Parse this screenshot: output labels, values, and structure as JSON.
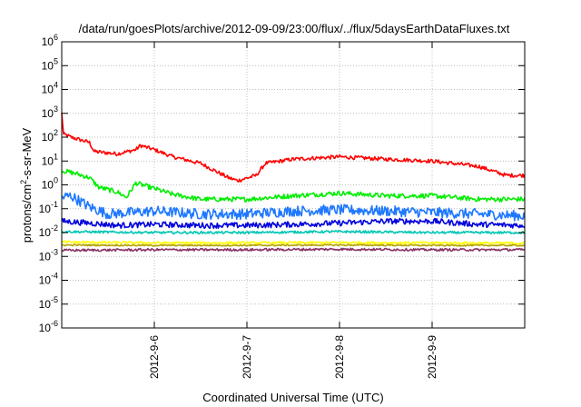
{
  "chart_data": {
    "type": "line",
    "title": "/data/run/goesPlots/archive/2012-09-09/23:00/flux/../flux/5daysEarthDataFluxes.txt",
    "xlabel": "Coordinated Universal Time (UTC)",
    "ylabel": "protons/cm2-s-sr-MeV",
    "y_scale": "log",
    "ylim": [
      1e-06,
      1000000.0
    ],
    "xlim_days": [
      0,
      5
    ],
    "x_ticks": [
      {
        "label": "2012-9-6",
        "day": 1
      },
      {
        "label": "2012-9-7",
        "day": 2
      },
      {
        "label": "2012-9-8",
        "day": 3
      },
      {
        "label": "2012-9-9",
        "day": 4
      }
    ],
    "y_ticks": [
      {
        "base": "10",
        "exp": "-6",
        "value": 1e-06
      },
      {
        "base": "10",
        "exp": "-5",
        "value": 1e-05
      },
      {
        "base": "10",
        "exp": "-4",
        "value": 0.0001
      },
      {
        "base": "10",
        "exp": "-3",
        "value": 0.001
      },
      {
        "base": "10",
        "exp": "-2",
        "value": 0.01
      },
      {
        "base": "10",
        "exp": "-1",
        "value": 0.1
      },
      {
        "base": "10",
        "exp": "0",
        "value": 1
      },
      {
        "base": "10",
        "exp": "1",
        "value": 10
      },
      {
        "base": "10",
        "exp": "2",
        "value": 100
      },
      {
        "base": "10",
        "exp": "3",
        "value": 1000
      },
      {
        "base": "10",
        "exp": "4",
        "value": 10000
      },
      {
        "base": "10",
        "exp": "5",
        "value": 100000
      },
      {
        "base": "10",
        "exp": "6",
        "value": 1000000
      }
    ],
    "grid": true,
    "legend": "none",
    "series": [
      {
        "color": "#ff0000",
        "noise": 0.08,
        "x": [
          0,
          0.02,
          0.05,
          0.1,
          0.3,
          0.35,
          0.6,
          0.8,
          0.85,
          1.0,
          1.2,
          1.5,
          1.8,
          1.9,
          2.1,
          2.2,
          2.5,
          3.0,
          3.5,
          4.0,
          4.5,
          4.8,
          5.0
        ],
        "y": [
          1000,
          130,
          120,
          100,
          60,
          25,
          20,
          30,
          45,
          30,
          15,
          8,
          2,
          1.5,
          2.5,
          8,
          12,
          15,
          12,
          10,
          6,
          2.5,
          2.5
        ]
      },
      {
        "color": "#00ee00",
        "noise": 0.1,
        "x": [
          0,
          0.15,
          0.3,
          0.4,
          0.6,
          0.7,
          0.8,
          1.0,
          1.2,
          1.5,
          2.0,
          2.5,
          3.0,
          3.5,
          4.0,
          4.5,
          5.0
        ],
        "y": [
          4,
          3,
          2,
          0.8,
          0.5,
          0.3,
          1.2,
          0.7,
          0.4,
          0.25,
          0.25,
          0.35,
          0.45,
          0.35,
          0.35,
          0.25,
          0.25
        ]
      },
      {
        "color": "#1e78ff",
        "noise": 0.22,
        "x": [
          0,
          0.1,
          0.3,
          0.5,
          1.0,
          1.5,
          2.0,
          2.5,
          3.0,
          3.5,
          4.0,
          4.5,
          5.0
        ],
        "y": [
          0.3,
          0.35,
          0.12,
          0.06,
          0.08,
          0.06,
          0.06,
          0.08,
          0.09,
          0.08,
          0.07,
          0.06,
          0.05
        ]
      },
      {
        "color": "#0000dd",
        "noise": 0.12,
        "x": [
          0,
          0.3,
          0.6,
          1.0,
          1.5,
          2.0,
          2.5,
          3.0,
          3.5,
          4.0,
          4.5,
          5.0
        ],
        "y": [
          0.03,
          0.025,
          0.02,
          0.022,
          0.02,
          0.02,
          0.022,
          0.025,
          0.03,
          0.03,
          0.022,
          0.02
        ]
      },
      {
        "color": "#00c8b4",
        "noise": 0.05,
        "x": [
          0,
          1.0,
          2.0,
          3.0,
          4.0,
          5.0
        ],
        "y": [
          0.011,
          0.01,
          0.01,
          0.011,
          0.01,
          0.01
        ]
      },
      {
        "color": "#ffff00",
        "noise": 0.05,
        "x": [
          0,
          1.0,
          2.0,
          3.0,
          4.0,
          5.0
        ],
        "y": [
          0.004,
          0.0037,
          0.0037,
          0.0038,
          0.0037,
          0.0036
        ]
      },
      {
        "color": "#b4a000",
        "noise": 0.03,
        "x": [
          0,
          1.0,
          2.0,
          3.0,
          4.0,
          5.0
        ],
        "y": [
          0.003,
          0.0029,
          0.0029,
          0.003,
          0.0029,
          0.0029
        ]
      },
      {
        "color": "#883366",
        "noise": 0.05,
        "x": [
          0,
          1.0,
          2.0,
          3.0,
          4.0,
          5.0
        ],
        "y": [
          0.0018,
          0.0019,
          0.0019,
          0.002,
          0.0019,
          0.0019
        ]
      }
    ]
  }
}
